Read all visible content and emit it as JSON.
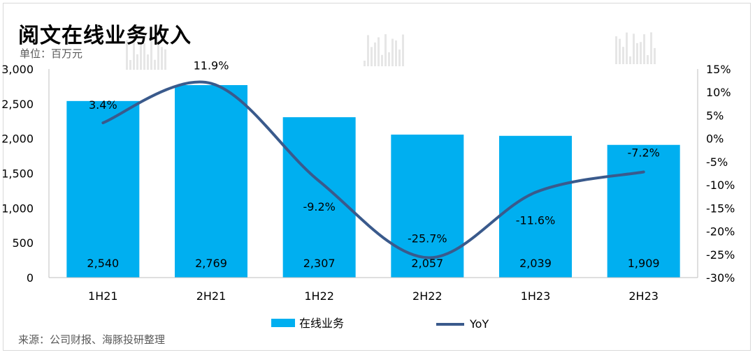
{
  "header": {
    "title": "阅文在线业务收入",
    "unit": "单位：百万元"
  },
  "footer": {
    "source": "来源：公司财报、海豚投研整理"
  },
  "colors": {
    "bar": "#00aff0",
    "line": "#3a5a8c",
    "axis": "#bfbfbf",
    "watermark": "#e6e6e6"
  },
  "chart_data": {
    "type": "bar",
    "categories": [
      "1H21",
      "2H21",
      "1H22",
      "2H22",
      "1H23",
      "2H23"
    ],
    "series": [
      {
        "name": "在线业务",
        "type": "bar",
        "axis": "left",
        "values": [
          2540,
          2769,
          2307,
          2057,
          2039,
          1909
        ],
        "labels": [
          "2,540",
          "2,769",
          "2,307",
          "2,057",
          "2,039",
          "1,909"
        ]
      },
      {
        "name": "YoY",
        "type": "line",
        "axis": "right",
        "values": [
          3.4,
          11.9,
          -9.2,
          -25.7,
          -11.6,
          -7.2
        ],
        "labels": [
          "3.4%",
          "11.9%",
          "-9.2%",
          "-25.7%",
          "-11.6%",
          "-7.2%"
        ]
      }
    ],
    "y_left": {
      "lim": [
        0,
        3000
      ],
      "ticks": [
        0,
        500,
        1000,
        1500,
        2000,
        2500,
        3000
      ],
      "tick_labels": [
        "0",
        "500",
        "1,000",
        "1,500",
        "2,000",
        "2,500",
        "3,000"
      ]
    },
    "y_right": {
      "lim": [
        -30,
        15
      ],
      "ticks": [
        -30,
        -25,
        -20,
        -15,
        -10,
        -5,
        0,
        5,
        10,
        15
      ],
      "tick_labels": [
        "-30%",
        "-25%",
        "-20%",
        "-15%",
        "-10%",
        "-5%",
        "0%",
        "5%",
        "10%",
        "15%"
      ]
    },
    "legend_position": "bottom",
    "grid": false
  }
}
